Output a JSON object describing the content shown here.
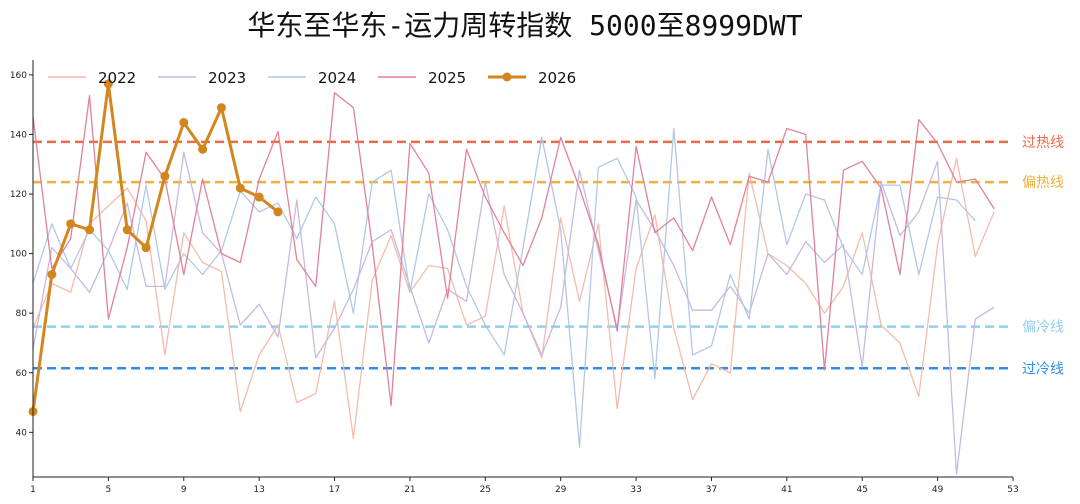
{
  "chart_data": {
    "type": "line",
    "title": "华东至华东-运力周转指数 5000至8999DWT",
    "xlabel": "",
    "ylabel": "",
    "xlim": [
      1,
      53
    ],
    "ylim": [
      25,
      165
    ],
    "x_ticks": [
      1,
      5,
      9,
      13,
      17,
      21,
      25,
      29,
      33,
      37,
      41,
      45,
      49,
      53
    ],
    "y_ticks": [
      40,
      60,
      80,
      100,
      120,
      140,
      160
    ],
    "grid": false,
    "legend_position": "top-left",
    "series": [
      {
        "name": "2022",
        "color": "#f2b8a6",
        "values": [
          75,
          90,
          87,
          110,
          116,
          122,
          111,
          66,
          107,
          97,
          94,
          47,
          66,
          76,
          50,
          53,
          84,
          38,
          91,
          106,
          87,
          96,
          95,
          76,
          79,
          116,
          80,
          65,
          112,
          84,
          110,
          48,
          95,
          113,
          75,
          51,
          63,
          60,
          127,
          100,
          96,
          90,
          80,
          89,
          107,
          76,
          70,
          52,
          103,
          132,
          99,
          114
        ]
      },
      {
        "name": "2023",
        "color": "#c3b5e0",
        "values": [
          68,
          102,
          95,
          87,
          101,
          117,
          89,
          89,
          134,
          107,
          100,
          76,
          83,
          72,
          118,
          65,
          75,
          88,
          104,
          108,
          89,
          70,
          88,
          84,
          124,
          93,
          80,
          66,
          82,
          128,
          101,
          75,
          118,
          108,
          96,
          81,
          81,
          89,
          80,
          100,
          93,
          104,
          97,
          103,
          62,
          124,
          106,
          114,
          131,
          26,
          78,
          82
        ]
      },
      {
        "name": "2024",
        "color": "#b0c4e6",
        "values": [
          90,
          110,
          95,
          108,
          101,
          88,
          123,
          88,
          100,
          93,
          101,
          121,
          114,
          117,
          105,
          119,
          110,
          80,
          124,
          128,
          87,
          120,
          108,
          89,
          76,
          66,
          102,
          139,
          108,
          35,
          129,
          132,
          119,
          58,
          142,
          66,
          69,
          93,
          78,
          135,
          103,
          120,
          118,
          102,
          93,
          123,
          123,
          93,
          119,
          118,
          111
        ]
      },
      {
        "name": "2025",
        "color": "#e07b94",
        "values": [
          146,
          95,
          105,
          153,
          78,
          102,
          134,
          125,
          93,
          125,
          100,
          97,
          125,
          141,
          98,
          89,
          154,
          149,
          103,
          49,
          137,
          127,
          85,
          135,
          119,
          107,
          96,
          112,
          139,
          122,
          103,
          74,
          136,
          107,
          112,
          101,
          119,
          103,
          126,
          124,
          142,
          140,
          61,
          128,
          131,
          122,
          93,
          145,
          137,
          124,
          125,
          115
        ]
      },
      {
        "name": "2026",
        "color": "#d4861e",
        "bold": true,
        "values": [
          47,
          93,
          110,
          108,
          157,
          108,
          102,
          126,
          144,
          135,
          149,
          122,
          119,
          114
        ]
      }
    ],
    "reference_lines": [
      {
        "label": "过热线",
        "value": 137.5,
        "color": "#ee6a46"
      },
      {
        "label": "偏热线",
        "value": 124,
        "color": "#eeb13a"
      },
      {
        "label": "偏冷线",
        "value": 75.5,
        "color": "#8fd0ef"
      },
      {
        "label": "过冷线",
        "value": 61.5,
        "color": "#2f8fe8"
      }
    ]
  }
}
